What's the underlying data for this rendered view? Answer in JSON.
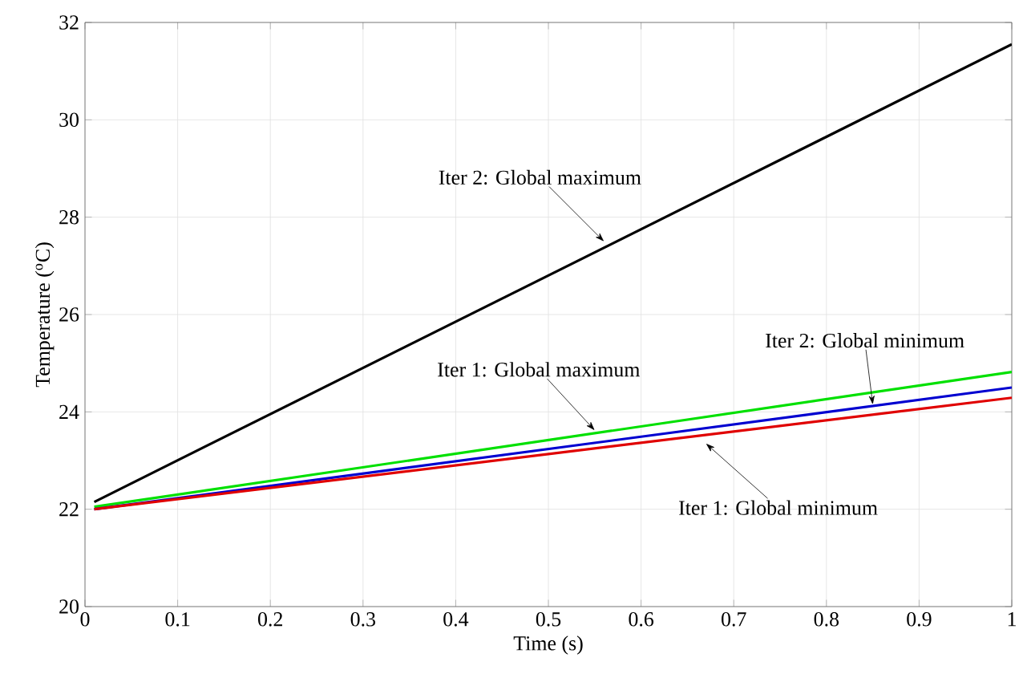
{
  "chart_data": {
    "type": "line",
    "xlabel": "Time (s)",
    "ylabel": "Temperature ($^{o}$C)",
    "xlim": [
      0,
      1
    ],
    "ylim": [
      20,
      32
    ],
    "xticks": [
      0,
      0.1,
      0.2,
      0.3,
      0.4,
      0.5,
      0.6,
      0.7,
      0.8,
      0.9,
      1
    ],
    "yticks": [
      20,
      22,
      24,
      26,
      28,
      30,
      32
    ],
    "grid": true,
    "marker": "none",
    "line_style": "solid",
    "x": [
      0.01,
      1
    ],
    "series": [
      {
        "color": "#000000",
        "values": [
          22.15,
          31.55
        ]
      },
      {
        "color": "#00e000",
        "values": [
          22.05,
          24.82
        ]
      },
      {
        "color": "#0000d0",
        "values": [
          22.0,
          24.5
        ]
      },
      {
        "color": "#e00000",
        "values": [
          22.0,
          24.29
        ]
      }
    ],
    "annotations": [
      {
        "text": "Iter 2: Global maximum",
        "x": 0.56,
        "y": 27.5
      },
      {
        "text": "Iter 1: Global maximum",
        "x": 0.55,
        "y": 23.62
      },
      {
        "text": "Iter 2: Global minimum",
        "x": 0.85,
        "y": 24.15
      },
      {
        "text": "Iter 1: Global minimum",
        "x": 0.67,
        "y": 23.35
      }
    ]
  }
}
